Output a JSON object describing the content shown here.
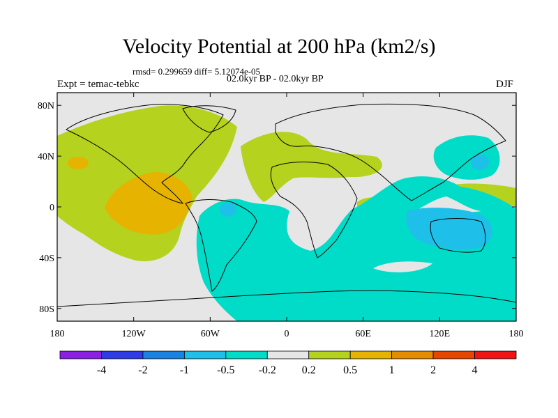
{
  "header": {
    "title": "Velocity Potential at 200 hPa (km2/s)",
    "stats": "rmsd= 0.299659 diff= 5.12074e-05",
    "period": "02.0kyr BP - 02.0kyr BP",
    "expt": "Expt = temac-tebkc",
    "season": "DJF"
  },
  "map": {
    "projection": "cylindrical-equidistant",
    "lon_range": [
      -180,
      180
    ],
    "lat_range": [
      -90,
      90
    ],
    "background_color": "#e6e6e6",
    "lat_ticks": [
      {
        "value": 80,
        "label": "80N"
      },
      {
        "value": 40,
        "label": "40N"
      },
      {
        "value": 0,
        "label": "0"
      },
      {
        "value": -40,
        "label": "40S"
      },
      {
        "value": -80,
        "label": "80S"
      }
    ],
    "lon_ticks": [
      {
        "value": -180,
        "label": "180"
      },
      {
        "value": -120,
        "label": "120W"
      },
      {
        "value": -60,
        "label": "60W"
      },
      {
        "value": 0,
        "label": "0"
      },
      {
        "value": 60,
        "label": "60E"
      },
      {
        "value": 120,
        "label": "120E"
      },
      {
        "value": 180,
        "label": "180"
      }
    ]
  },
  "colorbar": {
    "colors": [
      "#8c1ee6",
      "#2d3ce6",
      "#1a82e0",
      "#1ec0ea",
      "#00dcc8",
      "#e6e6e6",
      "#b4d21e",
      "#e6b400",
      "#e68c00",
      "#e64600",
      "#f01414"
    ],
    "labels": [
      "-4",
      "-2",
      "-1",
      "-0.5",
      "-0.2",
      "0.2",
      "0.5",
      "1",
      "2",
      "4"
    ]
  }
}
